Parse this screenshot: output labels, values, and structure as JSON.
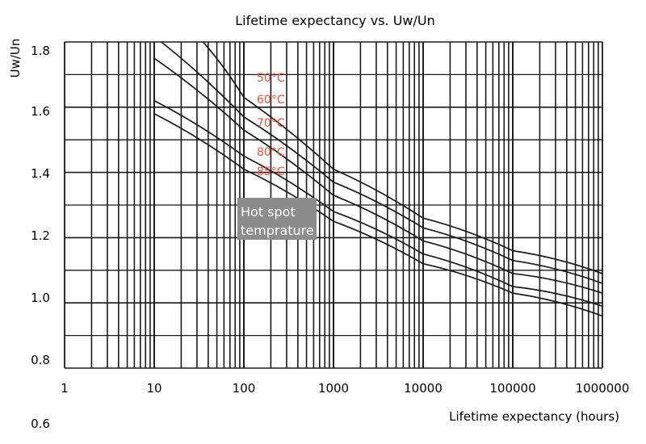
{
  "chart_data": {
    "type": "line",
    "title": "Lifetime expectancy vs. Uw/Un",
    "xlabel": "Lifetime expectancy (hours)",
    "ylabel": "Uw/Un",
    "x_scale": "log",
    "xlim": [
      1,
      1000000
    ],
    "ylim": [
      0.8,
      1.8
    ],
    "x_ticks": [
      "1",
      "10",
      "100",
      "1000",
      "10000",
      "100000",
      "1000000"
    ],
    "y_ticks": [
      "1.8",
      "1.6",
      "1.4",
      "1.2",
      "1.0",
      "0.8",
      "0.6"
    ],
    "grid": true,
    "series": [
      {
        "name": "50°C",
        "x": [
          35,
          100,
          1000,
          10000,
          100000,
          1000000
        ],
        "y": [
          1.8,
          1.63,
          1.41,
          1.26,
          1.16,
          1.09
        ]
      },
      {
        "name": "60°C",
        "x": [
          12,
          100,
          1000,
          10000,
          100000,
          1000000
        ],
        "y": [
          1.8,
          1.57,
          1.37,
          1.23,
          1.13,
          1.06
        ]
      },
      {
        "name": "70°C",
        "x": [
          10,
          100,
          1000,
          10000,
          100000,
          1000000
        ],
        "y": [
          1.75,
          1.53,
          1.33,
          1.19,
          1.09,
          1.03
        ]
      },
      {
        "name": "80°C",
        "x": [
          10,
          100,
          1000,
          10000,
          100000,
          1000000
        ],
        "y": [
          1.62,
          1.45,
          1.28,
          1.15,
          1.05,
          0.99
        ]
      },
      {
        "name": "85°C",
        "x": [
          10,
          100,
          1000,
          10000,
          100000,
          1000000
        ],
        "y": [
          1.58,
          1.41,
          1.25,
          1.12,
          1.03,
          0.96
        ]
      }
    ],
    "annotation": [
      "Hot spot",
      "temprature"
    ],
    "colors": {
      "curve": "#1a1a1a",
      "grid": "#1a1a1a",
      "temp_label": "#e8543a",
      "note_bg": "#8c8c8c",
      "note_text": "#ffffff"
    }
  }
}
